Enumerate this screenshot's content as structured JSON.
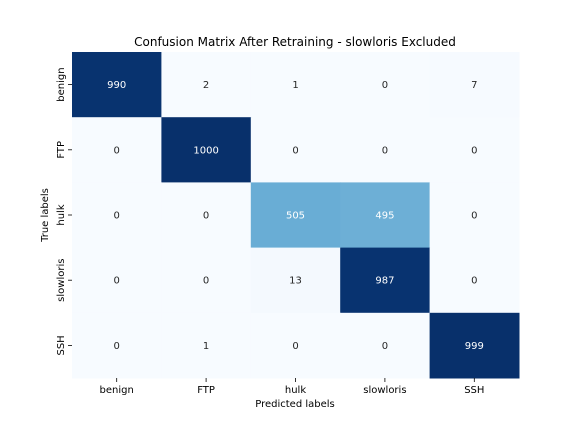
{
  "chart_data": {
    "type": "heatmap",
    "title": "Confusion Matrix After Retraining - slowloris Excluded",
    "xlabel": "Predicted labels",
    "ylabel": "True labels",
    "x_categories": [
      "benign",
      "FTP",
      "hulk",
      "slowloris",
      "SSH"
    ],
    "y_categories": [
      "benign",
      "FTP",
      "hulk",
      "slowloris",
      "SSH"
    ],
    "values": [
      [
        990,
        2,
        1,
        0,
        7
      ],
      [
        0,
        1000,
        0,
        0,
        0
      ],
      [
        0,
        0,
        505,
        495,
        0
      ],
      [
        0,
        0,
        13,
        987,
        0
      ],
      [
        0,
        1,
        0,
        0,
        999
      ]
    ],
    "color_range": [
      0,
      1000
    ],
    "colormap": "Blues",
    "colorbar": false
  }
}
